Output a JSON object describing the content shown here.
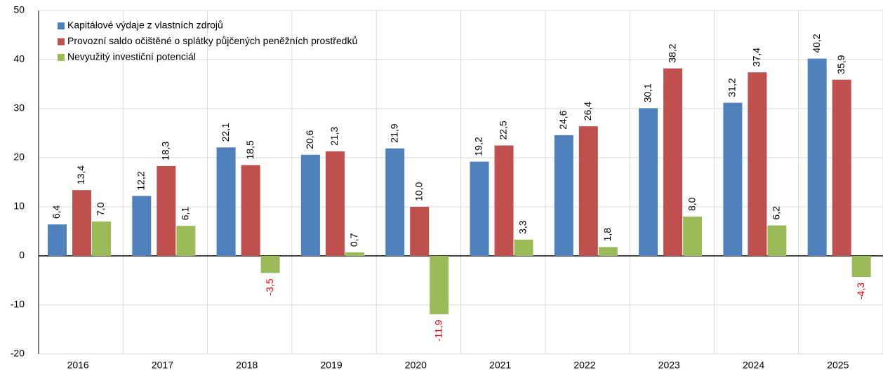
{
  "chart_data": {
    "type": "bar",
    "categories": [
      "2016",
      "2017",
      "2018",
      "2019",
      "2020",
      "2021",
      "2022",
      "2023",
      "2024",
      "2025"
    ],
    "series": [
      {
        "name": "Kapitálové výdaje z vlastních zdrojů",
        "color": "#4f81bd",
        "values": [
          6.4,
          12.2,
          22.1,
          20.6,
          21.9,
          19.2,
          24.6,
          30.1,
          31.2,
          40.2
        ],
        "value_labels": [
          "6,4",
          "12,2",
          "22,1",
          "20,6",
          "21,9",
          "19,2",
          "24,6",
          "30,1",
          "31,2",
          "40,2"
        ]
      },
      {
        "name": "Provozní saldo očištěné o splátky půjčených peněžních prostředků",
        "color": "#c0504d",
        "values": [
          13.4,
          18.3,
          18.5,
          21.3,
          10.0,
          22.5,
          26.4,
          38.2,
          37.4,
          35.9
        ],
        "value_labels": [
          "13,4",
          "18,3",
          "18,5",
          "21,3",
          "10,0",
          "22,5",
          "26,4",
          "38,2",
          "37,4",
          "35,9"
        ]
      },
      {
        "name": "Nevyužitý investiční potenciál",
        "color": "#9bbb59",
        "values": [
          7.0,
          6.1,
          -3.5,
          0.7,
          -11.9,
          3.3,
          1.8,
          8.0,
          6.2,
          -4.3
        ],
        "value_labels": [
          "7,0",
          "6,1",
          "-3,5",
          "0,7",
          "-11,9",
          "3,3",
          "1,8",
          "8,0",
          "6,2",
          "-4,3"
        ]
      }
    ],
    "ylim": [
      -20,
      50
    ],
    "yticks": [
      -20,
      -10,
      0,
      10,
      20,
      30,
      40,
      50
    ],
    "grid": true,
    "legend": "top-left",
    "negative_label_color": "#ff0000"
  }
}
